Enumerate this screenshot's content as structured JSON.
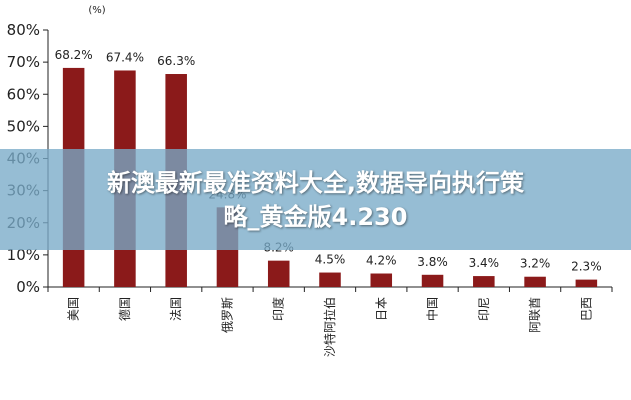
{
  "chart_data": {
    "type": "bar",
    "unit_label": "(%)",
    "categories": [
      "美国",
      "德国",
      "法国",
      "俄罗斯",
      "印度",
      "沙特阿拉伯",
      "日本",
      "中国",
      "印尼",
      "阿联酋",
      "巴西"
    ],
    "values": [
      68.2,
      67.4,
      66.3,
      24.8,
      8.2,
      4.5,
      4.2,
      3.8,
      3.4,
      3.2,
      2.3
    ],
    "data_labels": [
      "68.2%",
      "67.4%",
      "66.3%",
      "24.8%",
      "8.2%",
      "4.5%",
      "4.2%",
      "3.8%",
      "3.4%",
      "3.2%",
      "2.3%"
    ],
    "y_ticks": [
      "0%",
      "10%",
      "20%",
      "30%",
      "40%",
      "50%",
      "60%",
      "70%",
      "80%"
    ],
    "ylim": [
      0,
      80
    ],
    "bar_color": "#8b1a1a",
    "grid": false
  },
  "overlay": {
    "line1": "新澳最新最准资料大全,数据导向执行策",
    "line2": "略_黄金版4.230"
  }
}
